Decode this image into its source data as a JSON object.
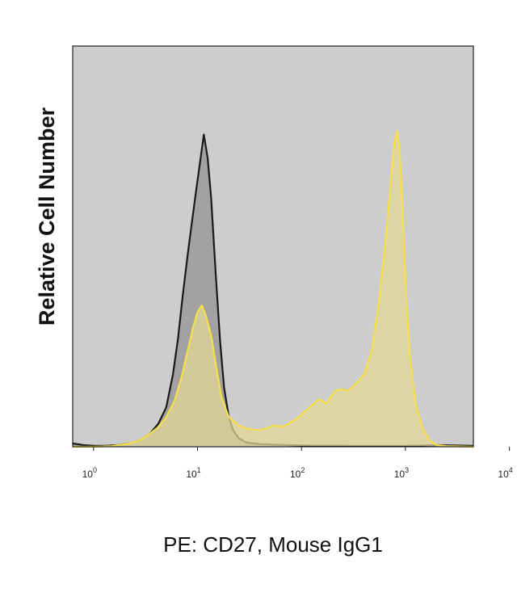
{
  "chart_data": {
    "type": "area",
    "xlabel": "PE: CD27, Mouse IgG1",
    "ylabel": "Relative Cell Number",
    "x_scale": "log",
    "xlim": [
      0.63,
      4500
    ],
    "ylim": [
      0,
      1
    ],
    "grid": false,
    "legend": "none",
    "plot_background": "#cdcdcd",
    "x_ticks": [
      {
        "base": "10",
        "exp": "0",
        "value": 1
      },
      {
        "base": "10",
        "exp": "1",
        "value": 10
      },
      {
        "base": "10",
        "exp": "2",
        "value": 100
      },
      {
        "base": "10",
        "exp": "3",
        "value": 1000
      },
      {
        "base": "10",
        "exp": "4",
        "value": 10000
      }
    ],
    "series": [
      {
        "color": "#1a1a1a",
        "fill": "#9a9a9a",
        "x": [
          0.63,
          0.8,
          1.0,
          1.3,
          1.7,
          2.2,
          2.8,
          3.5,
          4.2,
          5.0,
          5.8,
          6.5,
          7.2,
          8.0,
          8.8,
          9.5,
          10.5,
          11.5,
          12.5,
          13.5,
          15.0,
          16.5,
          18.0,
          20.0,
          22.0,
          25.0,
          30.0,
          40.0,
          60.0,
          100,
          300,
          1000,
          2000,
          4500
        ],
        "y": [
          0.01,
          0.005,
          0.003,
          0.003,
          0.005,
          0.01,
          0.02,
          0.04,
          0.07,
          0.12,
          0.22,
          0.33,
          0.46,
          0.58,
          0.68,
          0.76,
          0.86,
          0.95,
          0.88,
          0.76,
          0.52,
          0.32,
          0.18,
          0.09,
          0.05,
          0.025,
          0.012,
          0.008,
          0.006,
          0.004,
          0.003,
          0.003,
          0.005,
          0.003
        ]
      },
      {
        "color": "#f5e04a",
        "fill": "#e1d797",
        "x": [
          0.63,
          1.0,
          1.5,
          2.2,
          2.8,
          3.5,
          4.2,
          5.0,
          6.0,
          7.0,
          8.0,
          9.0,
          10.0,
          11.0,
          12.0,
          13.5,
          15.0,
          17.0,
          20.0,
          25.0,
          30.0,
          38.0,
          45.0,
          55.0,
          65.0,
          75.0,
          90.0,
          110,
          130,
          150,
          170,
          190,
          210,
          240,
          280,
          330,
          400,
          480,
          560,
          640,
          720,
          780,
          830,
          880,
          940,
          1000,
          1100,
          1250,
          1450,
          1700,
          2000,
          2500,
          4500
        ],
        "y": [
          0.0,
          0.0,
          0.002,
          0.01,
          0.02,
          0.04,
          0.06,
          0.09,
          0.14,
          0.21,
          0.29,
          0.36,
          0.41,
          0.43,
          0.4,
          0.34,
          0.25,
          0.15,
          0.09,
          0.065,
          0.055,
          0.05,
          0.055,
          0.065,
          0.06,
          0.07,
          0.085,
          0.11,
          0.13,
          0.145,
          0.13,
          0.15,
          0.17,
          0.175,
          0.17,
          0.19,
          0.22,
          0.3,
          0.45,
          0.62,
          0.8,
          0.92,
          0.96,
          0.9,
          0.72,
          0.5,
          0.28,
          0.13,
          0.06,
          0.02,
          0.005,
          0.002,
          0.0
        ]
      }
    ]
  }
}
